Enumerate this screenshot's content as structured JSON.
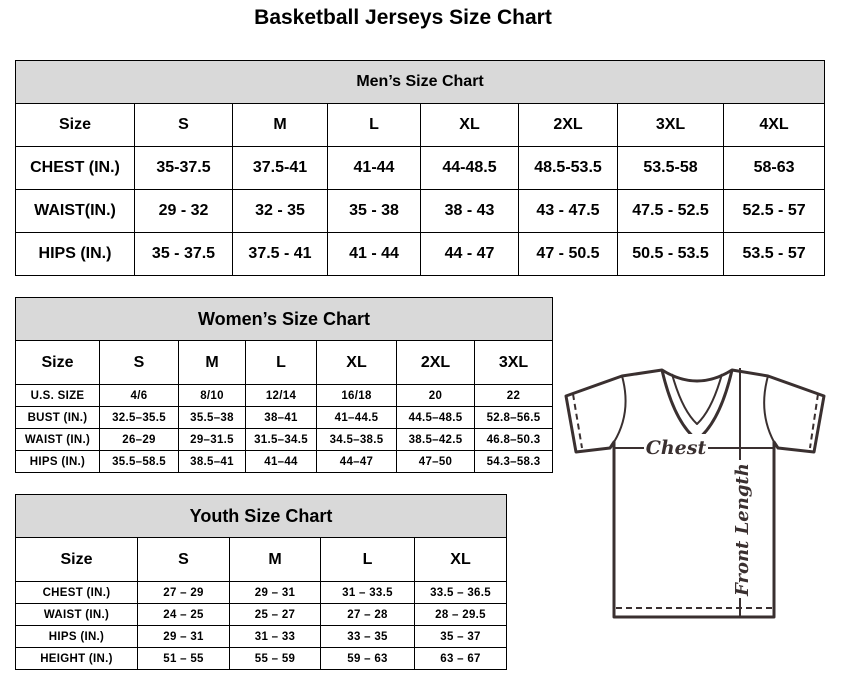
{
  "title": "Basketball Jerseys Size Chart",
  "men": {
    "title": "Men’s Size Chart",
    "header": [
      "Size",
      "S",
      "M",
      "L",
      "XL",
      "2XL",
      "3XL",
      "4XL"
    ],
    "rows": [
      [
        "CHEST (IN.)",
        "35-37.5",
        "37.5-41",
        "41-44",
        "44-48.5",
        "48.5-53.5",
        "53.5-58",
        "58-63"
      ],
      [
        "WAIST(IN.)",
        "29 - 32",
        "32 - 35",
        "35 - 38",
        "38 - 43",
        "43 - 47.5",
        "47.5 - 52.5",
        "52.5 - 57"
      ],
      [
        "HIPS (IN.)",
        "35 - 37.5",
        "37.5 - 41",
        "41 - 44",
        "44 - 47",
        "47 - 50.5",
        "50.5 - 53.5",
        "53.5 - 57"
      ]
    ]
  },
  "women": {
    "title": "Women’s Size Chart",
    "header": [
      "Size",
      "S",
      "M",
      "L",
      "XL",
      "2XL",
      "3XL"
    ],
    "rows": [
      [
        "U.S.  SIZE",
        "4/6",
        "8/10",
        "12/14",
        "16/18",
        "20",
        "22"
      ],
      [
        "BUST  (IN.)",
        "32.5–35.5",
        "35.5–38",
        "38–41",
        "41–44.5",
        "44.5–48.5",
        "52.8–56.5"
      ],
      [
        "WAIST  (IN.)",
        "26–29",
        "29–31.5",
        "31.5–34.5",
        "34.5–38.5",
        "38.5–42.5",
        "46.8–50.3"
      ],
      [
        "HIPS  (IN.)",
        "35.5–58.5",
        "38.5–41",
        "41–44",
        "44–47",
        "47–50",
        "54.3–58.3"
      ]
    ]
  },
  "youth": {
    "title": "Youth Size Chart",
    "header": [
      "Size",
      "S",
      "M",
      "L",
      "XL"
    ],
    "rows": [
      [
        "CHEST  (IN.)",
        "27  –  29",
        "29  –  31",
        "31  –  33.5",
        "33.5  –  36.5"
      ],
      [
        "WAIST  (IN.)",
        "24  –  25",
        "25  –  27",
        "27  –  28",
        "28  –  29.5"
      ],
      [
        "HIPS  (IN.)",
        "29  –  31",
        "31  –  33",
        "33  –  35",
        "35  –  37"
      ],
      [
        "HEIGHT  (IN.)",
        "51  –  55",
        "55  –  59",
        "59  –  63",
        "63  –  67"
      ]
    ]
  },
  "diagram": {
    "chest_label": "Chest",
    "length_label": "Front Length",
    "icon": "t-shirt-icon",
    "line_color": "#3a3030"
  }
}
